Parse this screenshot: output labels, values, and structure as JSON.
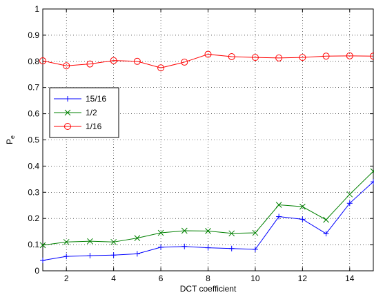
{
  "chart_data": {
    "type": "line",
    "title": "",
    "xlabel": "DCT coefficient",
    "ylabel": "P",
    "ylabel_subscript": "e",
    "xlim": [
      1,
      15
    ],
    "ylim": [
      0,
      1
    ],
    "xticks": [
      2,
      4,
      6,
      8,
      10,
      12,
      14
    ],
    "xtick_labels": [
      "2",
      "4",
      "6",
      "8",
      "10",
      "12",
      "14"
    ],
    "yticks": [
      0,
      0.1,
      0.2,
      0.3,
      0.4,
      0.5,
      0.6,
      0.7,
      0.8,
      0.9,
      1
    ],
    "ytick_labels": [
      "0",
      "0.1",
      "0.2",
      "0.3",
      "0.4",
      "0.5",
      "0.6",
      "0.7",
      "0.8",
      "0.9",
      "1"
    ],
    "grid": true,
    "legend_position": "left",
    "x": [
      1,
      2,
      3,
      4,
      5,
      6,
      7,
      8,
      9,
      10,
      11,
      12,
      13,
      14,
      15
    ],
    "series": [
      {
        "name": "15/16",
        "color": "#0000ff",
        "marker": "plus",
        "values": [
          0.04,
          0.055,
          0.058,
          0.06,
          0.065,
          0.09,
          0.093,
          0.088,
          0.085,
          0.082,
          0.207,
          0.197,
          0.142,
          0.258,
          0.34
        ]
      },
      {
        "name": "1/2",
        "color": "#008000",
        "marker": "x",
        "values": [
          0.098,
          0.11,
          0.113,
          0.11,
          0.125,
          0.145,
          0.153,
          0.152,
          0.143,
          0.145,
          0.252,
          0.245,
          0.195,
          0.292,
          0.38
        ]
      },
      {
        "name": "1/16",
        "color": "#ff0000",
        "marker": "circle",
        "values": [
          0.802,
          0.783,
          0.79,
          0.803,
          0.8,
          0.775,
          0.797,
          0.827,
          0.818,
          0.815,
          0.813,
          0.815,
          0.82,
          0.821,
          0.82
        ]
      }
    ]
  }
}
